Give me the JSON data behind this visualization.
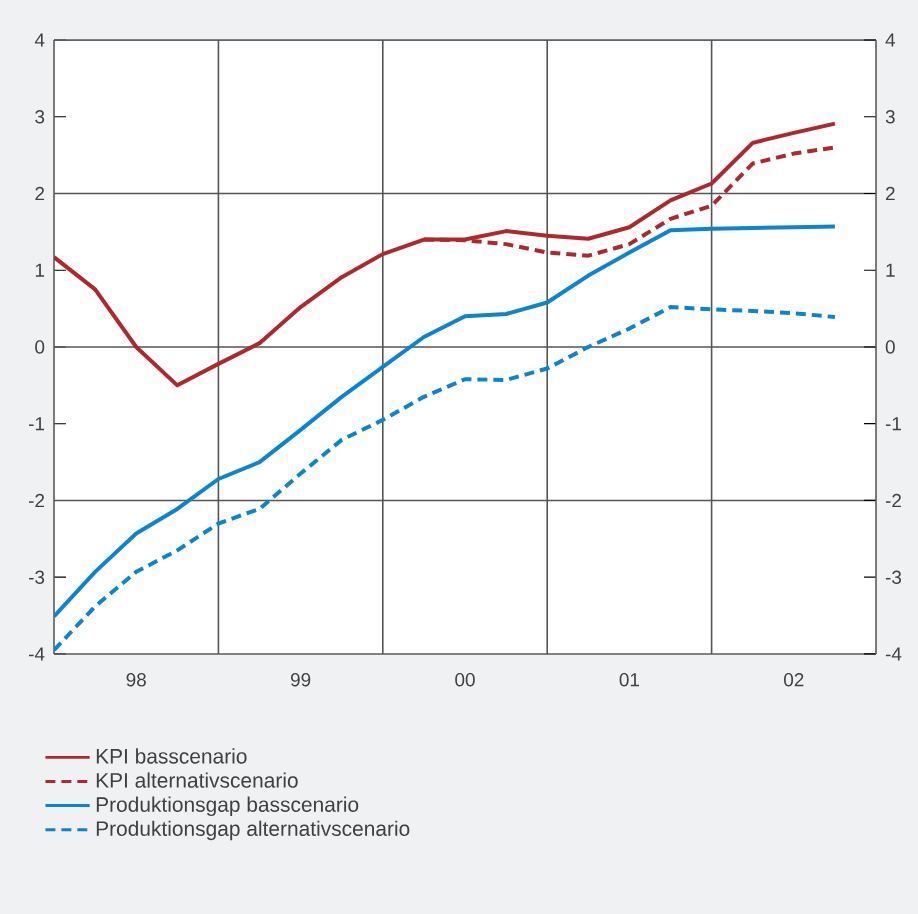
{
  "chart_data": {
    "type": "line",
    "x": [
      "1998-01",
      "1998-04",
      "1998-07",
      "1998-10",
      "1999-01",
      "1999-04",
      "1999-07",
      "1999-10",
      "2000-01",
      "2000-04",
      "2000-07",
      "2000-10",
      "2001-01",
      "2001-04",
      "2001-07",
      "2001-10",
      "2002-01",
      "2002-04",
      "2002-07",
      "2002-10"
    ],
    "xlim": [
      "1998-01",
      "2003-01"
    ],
    "xticks": [
      {
        "value": "1998-07",
        "label": "98"
      },
      {
        "value": "1999-07",
        "label": "99"
      },
      {
        "value": "2000-07",
        "label": "00"
      },
      {
        "value": "2001-07",
        "label": "01"
      },
      {
        "value": "2002-07",
        "label": "02"
      }
    ],
    "ylim": [
      -4,
      4
    ],
    "yticks": [
      -4,
      -3,
      -2,
      -1,
      0,
      1,
      2,
      3,
      4
    ],
    "y2lim": [
      -4,
      4
    ],
    "y2ticks": [
      -4,
      -3,
      -2,
      -1,
      0,
      1,
      2,
      3,
      4
    ],
    "grid": false,
    "legend": "bottom left",
    "ref_lines": [
      {
        "axis": "y",
        "value": -2,
        "color": "#555555"
      },
      {
        "axis": "y",
        "value": 0,
        "color": "#555555"
      },
      {
        "axis": "y",
        "value": 2,
        "color": "#555555"
      },
      {
        "axis": "x",
        "value": "1999-01",
        "color": "#555555"
      },
      {
        "axis": "x",
        "value": "2000-01",
        "color": "#555555"
      },
      {
        "axis": "x",
        "value": "2001-01",
        "color": "#555555"
      },
      {
        "axis": "x",
        "value": "2002-01",
        "color": "#555555"
      }
    ],
    "series": [
      {
        "name": "KPI basscenario",
        "color": "#b0282e",
        "line_style": "solid",
        "values": [
          1.17,
          0.75,
          0.0,
          -0.5,
          -0.22,
          0.05,
          0.52,
          0.91,
          1.21,
          1.4,
          1.4,
          1.51,
          1.45,
          1.41,
          1.56,
          1.91,
          2.13,
          2.66,
          2.79,
          2.91
        ]
      },
      {
        "name": "KPI alternativscenario",
        "color": "#b0282e",
        "line_style": "dashed",
        "values": [
          null,
          null,
          null,
          null,
          null,
          null,
          null,
          null,
          null,
          1.4,
          1.39,
          1.34,
          1.23,
          1.19,
          1.34,
          1.67,
          1.84,
          2.39,
          2.52,
          2.6
        ]
      },
      {
        "name": "Produktionsgap basscenario",
        "color": "#0a85cf",
        "line_style": "solid",
        "values": [
          -3.51,
          -2.93,
          -2.43,
          -2.11,
          -1.72,
          -1.5,
          -1.08,
          -0.65,
          -0.26,
          0.13,
          0.4,
          0.43,
          0.58,
          0.93,
          1.23,
          1.52,
          1.54,
          1.55,
          1.56,
          1.57
        ]
      },
      {
        "name": "Produktionsgap alternativscenario",
        "color": "#0a85cf",
        "line_style": "dashed",
        "values": [
          -3.95,
          -3.38,
          -2.93,
          -2.65,
          -2.3,
          -2.11,
          -1.65,
          -1.21,
          -0.95,
          -0.65,
          -0.42,
          -0.43,
          -0.28,
          0.0,
          0.24,
          0.52,
          0.49,
          0.47,
          0.44,
          0.39
        ]
      }
    ]
  }
}
